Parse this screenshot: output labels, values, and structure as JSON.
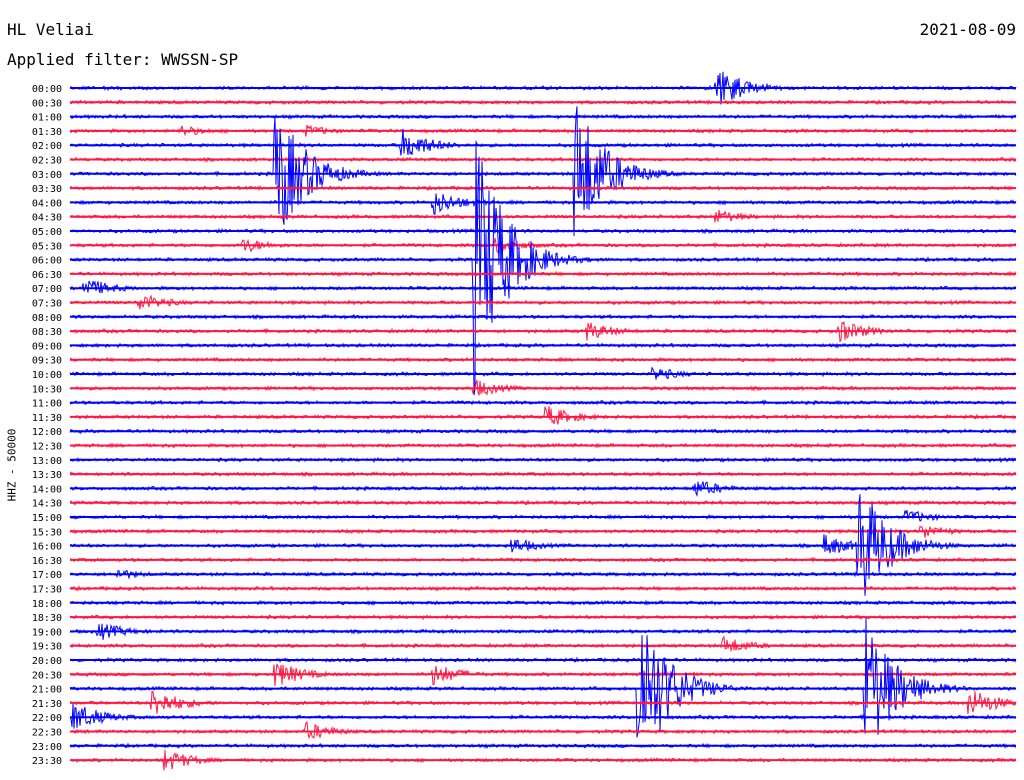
{
  "header": {
    "station": "HL Veliai",
    "filter": "Applied filter: WWSSN-SP",
    "date": "2021-08-09"
  },
  "chart_data": {
    "type": "line",
    "title": "HL Veliai",
    "subtitle": "Applied filter: WWSSN-SP",
    "date": "2021-08-09",
    "ylabel": "HHZ - 50000",
    "xlabel": "",
    "colors": [
      "#0000ff",
      "#ff1744"
    ],
    "grid": false,
    "rows": [
      "00:00",
      "00:30",
      "01:00",
      "01:30",
      "02:00",
      "02:30",
      "03:00",
      "03:30",
      "04:00",
      "04:30",
      "05:00",
      "05:30",
      "06:00",
      "06:30",
      "07:00",
      "07:30",
      "08:00",
      "08:30",
      "09:00",
      "09:30",
      "10:00",
      "10:30",
      "11:00",
      "11:30",
      "12:00",
      "12:30",
      "13:00",
      "13:30",
      "14:00",
      "14:30",
      "15:00",
      "15:30",
      "16:00",
      "16:30",
      "17:00",
      "17:30",
      "18:00",
      "18:30",
      "19:00",
      "19:30",
      "20:00",
      "20:30",
      "21:00",
      "21:30",
      "22:00",
      "22:30",
      "23:00",
      "23:30"
    ],
    "row_minutes": 30,
    "events": [
      {
        "row": "00:00",
        "minute": 20.5,
        "amplitude": 22
      },
      {
        "row": "01:30",
        "minute": 3.5,
        "amplitude": 6
      },
      {
        "row": "01:30",
        "minute": 7.5,
        "amplitude": 6
      },
      {
        "row": "02:00",
        "minute": 10.5,
        "amplitude": 18
      },
      {
        "row": "03:00",
        "minute": 6.5,
        "amplitude": 75
      },
      {
        "row": "03:00",
        "minute": 16,
        "amplitude": 80
      },
      {
        "row": "04:00",
        "minute": 11.5,
        "amplitude": 14
      },
      {
        "row": "04:30",
        "minute": 20.5,
        "amplitude": 8
      },
      {
        "row": "05:30",
        "minute": 5.5,
        "amplitude": 8
      },
      {
        "row": "05:30",
        "minute": 13.5,
        "amplitude": 10
      },
      {
        "row": "06:00",
        "minute": 12.8,
        "amplitude": 140
      },
      {
        "row": "07:00",
        "minute": 0.4,
        "amplitude": 12
      },
      {
        "row": "07:30",
        "minute": 2.2,
        "amplitude": 10
      },
      {
        "row": "08:30",
        "minute": 16.4,
        "amplitude": 10
      },
      {
        "row": "08:30",
        "minute": 24.4,
        "amplitude": 12
      },
      {
        "row": "10:00",
        "minute": 18.5,
        "amplitude": 8
      },
      {
        "row": "10:30",
        "minute": 12.8,
        "amplitude": 10
      },
      {
        "row": "11:30",
        "minute": 15.1,
        "amplitude": 12
      },
      {
        "row": "14:00",
        "minute": 19.8,
        "amplitude": 10
      },
      {
        "row": "15:00",
        "minute": 26.5,
        "amplitude": 8
      },
      {
        "row": "15:30",
        "minute": 27.0,
        "amplitude": 8
      },
      {
        "row": "16:00",
        "minute": 14.0,
        "amplitude": 9
      },
      {
        "row": "16:00",
        "minute": 23.9,
        "amplitude": 12
      },
      {
        "row": "16:00",
        "minute": 25.0,
        "amplitude": 70
      },
      {
        "row": "17:00",
        "minute": 1.5,
        "amplitude": 6
      },
      {
        "row": "19:00",
        "minute": 0.9,
        "amplitude": 10
      },
      {
        "row": "19:30",
        "minute": 20.7,
        "amplitude": 10
      },
      {
        "row": "20:30",
        "minute": 6.5,
        "amplitude": 14
      },
      {
        "row": "20:30",
        "minute": 11.5,
        "amplitude": 12
      },
      {
        "row": "21:00",
        "minute": 18.0,
        "amplitude": 95
      },
      {
        "row": "21:00",
        "minute": 25.2,
        "amplitude": 80
      },
      {
        "row": "21:30",
        "minute": 2.6,
        "amplitude": 16
      },
      {
        "row": "21:30",
        "minute": 28.5,
        "amplitude": 16
      },
      {
        "row": "22:00",
        "minute": 0.1,
        "amplitude": 16
      },
      {
        "row": "22:30",
        "minute": 7.5,
        "amplitude": 10
      },
      {
        "row": "23:30",
        "minute": 3.0,
        "amplitude": 12
      }
    ]
  }
}
